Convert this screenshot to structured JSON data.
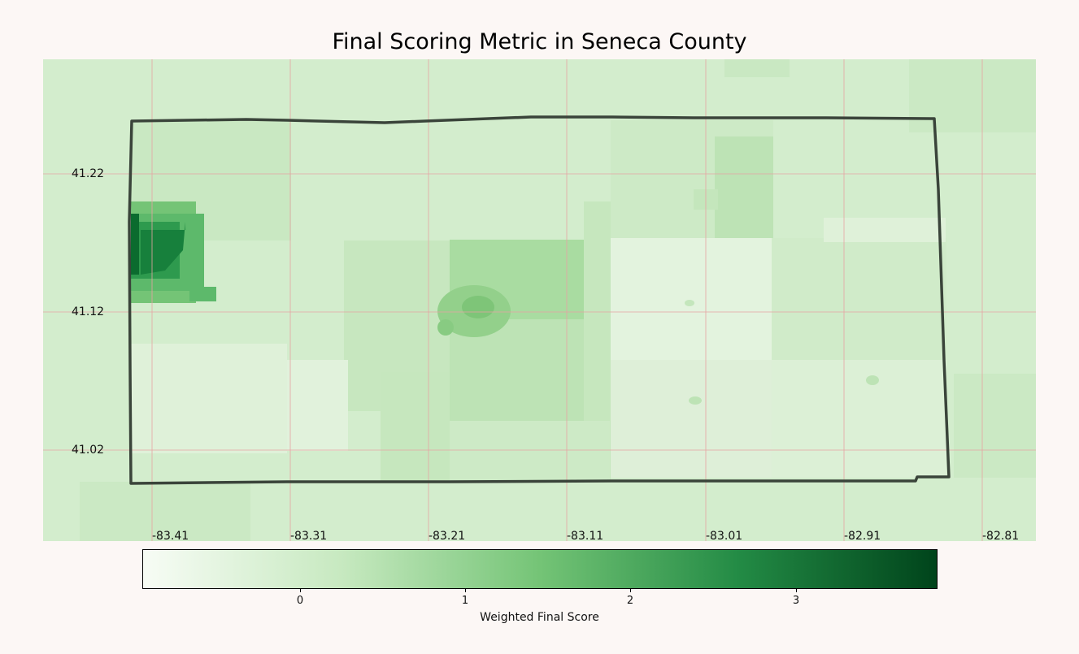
{
  "title": "Final Scoring Metric in Seneca County",
  "map": {
    "region": "Seneca County",
    "colormap": "Greens",
    "boundary_color": "#3a443a",
    "grid_color": "#e8a0a0",
    "lat_ticks": [
      "41.22",
      "41.12",
      "41.02"
    ],
    "lon_ticks": [
      "-83.41",
      "-83.31",
      "-83.21",
      "-83.11",
      "-83.01",
      "-82.91",
      "-82.81"
    ]
  },
  "colorbar": {
    "label": "Weighted Final Score",
    "ticks": [
      "0",
      "1",
      "2",
      "3"
    ],
    "range": [
      -0.95,
      3.85
    ],
    "colors": [
      "#f7fcf5",
      "#c7e9c0",
      "#74c476",
      "#238b45",
      "#00441b"
    ]
  }
}
